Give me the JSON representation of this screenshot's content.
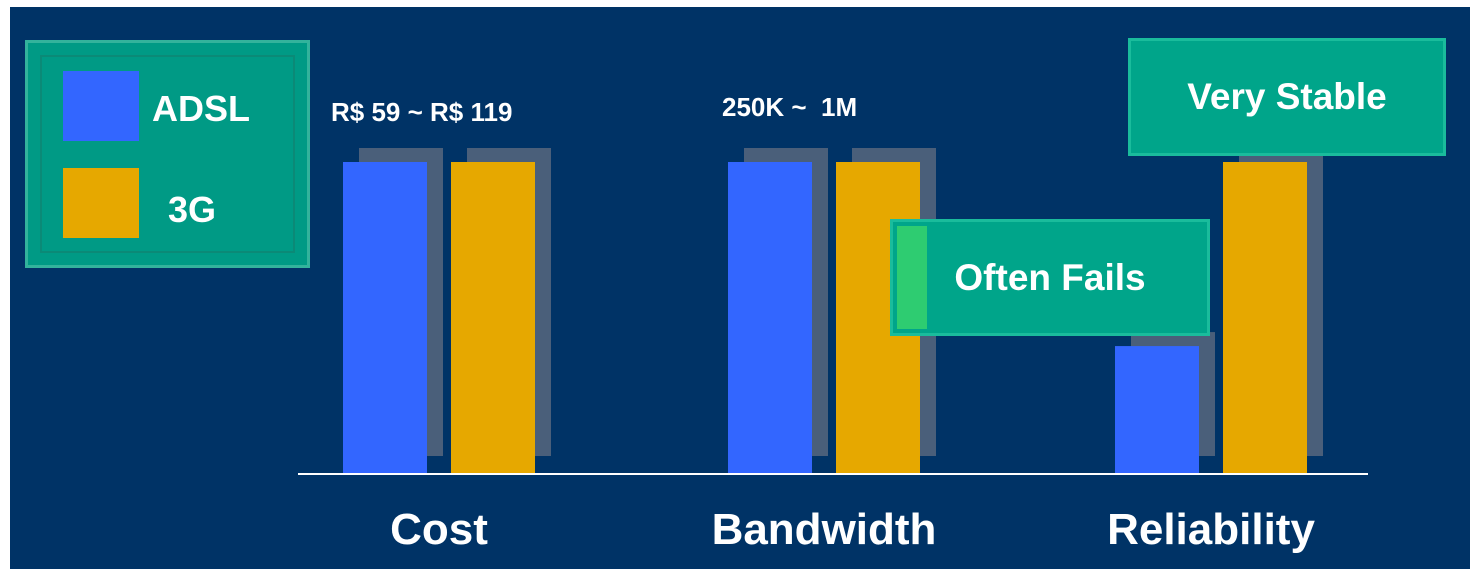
{
  "chart_data": {
    "type": "bar",
    "categories": [
      "Cost",
      "Bandwidth",
      "Reliability"
    ],
    "series": [
      {
        "name": "ADSL",
        "values": [
          100,
          100,
          41
        ]
      },
      {
        "name": "3G",
        "values": [
          100,
          100,
          100
        ]
      }
    ],
    "ylim": [
      0,
      100
    ],
    "grid": false,
    "legend_position": "top-left",
    "colors": {
      "ADSL": "#3366ff",
      "3G": "#e6a800",
      "shadow": "#4a5f7a",
      "axis": "#ffffff",
      "background": "#003366",
      "callout": "#00a58a"
    }
  },
  "legend": {
    "items": [
      {
        "label": "ADSL",
        "color": "#3366ff"
      },
      {
        "label": "3G",
        "color": "#e6a800"
      }
    ]
  },
  "annotations": {
    "cost_range": "R$ 59 ~ R$ 119",
    "bandwidth_range": "250K ~  1M",
    "reliability_3g": "Very Stable",
    "reliability_adsl": "Often Fails"
  }
}
